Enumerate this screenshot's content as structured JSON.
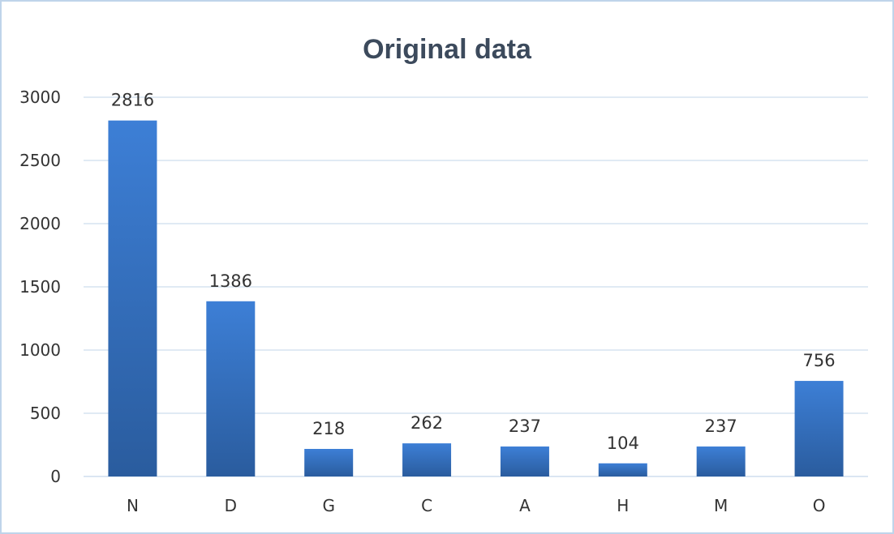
{
  "chart_data": {
    "type": "bar",
    "title": "Original data",
    "xlabel": "",
    "ylabel": "",
    "categories": [
      "N",
      "D",
      "G",
      "C",
      "A",
      "H",
      "M",
      "O"
    ],
    "values": [
      2816,
      1386,
      218,
      262,
      237,
      104,
      237,
      756
    ],
    "data_labels": [
      "2816",
      "1386",
      "218",
      "262",
      "237",
      "104",
      "237",
      "756"
    ],
    "ylim": [
      0,
      3000
    ],
    "yticks": [
      0,
      500,
      1000,
      1500,
      2000,
      2500,
      3000
    ],
    "ytick_labels": [
      "0",
      "500",
      "1000",
      "1500",
      "2000",
      "2500",
      "3000"
    ],
    "grid": true,
    "legend": "none",
    "colors": {
      "bar_top": "#3d7fd6",
      "bar_bottom": "#2a5c9e",
      "grid": "#d6e3f0",
      "frame": "#bfd4ea",
      "title": "#3c4a5c"
    }
  }
}
